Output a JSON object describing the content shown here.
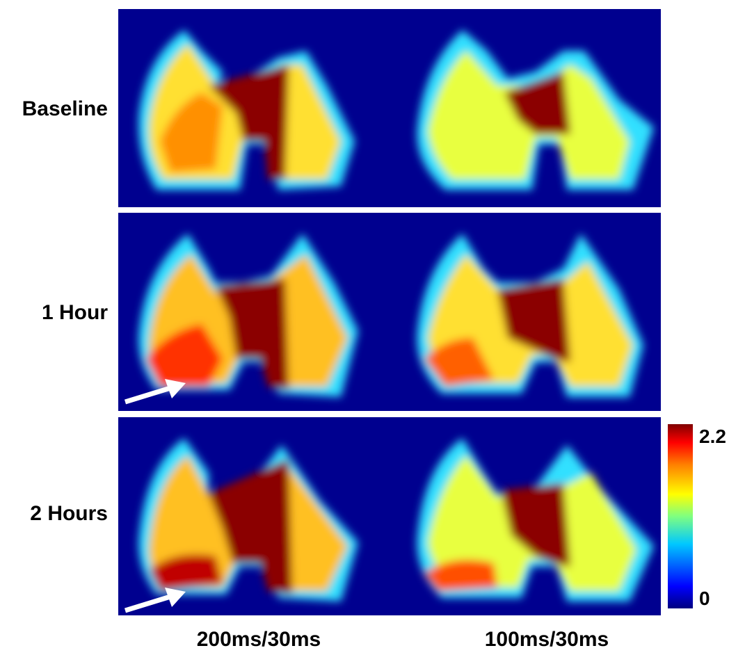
{
  "rows": [
    {
      "label": "Baseline"
    },
    {
      "label": "1 Hour"
    },
    {
      "label": "2 Hours"
    }
  ],
  "columns": [
    {
      "label": "200ms/30ms"
    },
    {
      "label": "100ms/30ms"
    }
  ],
  "colorbar": {
    "max_label": "2.2",
    "min_label": "0"
  },
  "colors": {
    "background": "#00008f",
    "hot": "#8b0000",
    "warm": "#ffa000",
    "mid": "#ffff30",
    "cool": "#30e0ff"
  }
}
